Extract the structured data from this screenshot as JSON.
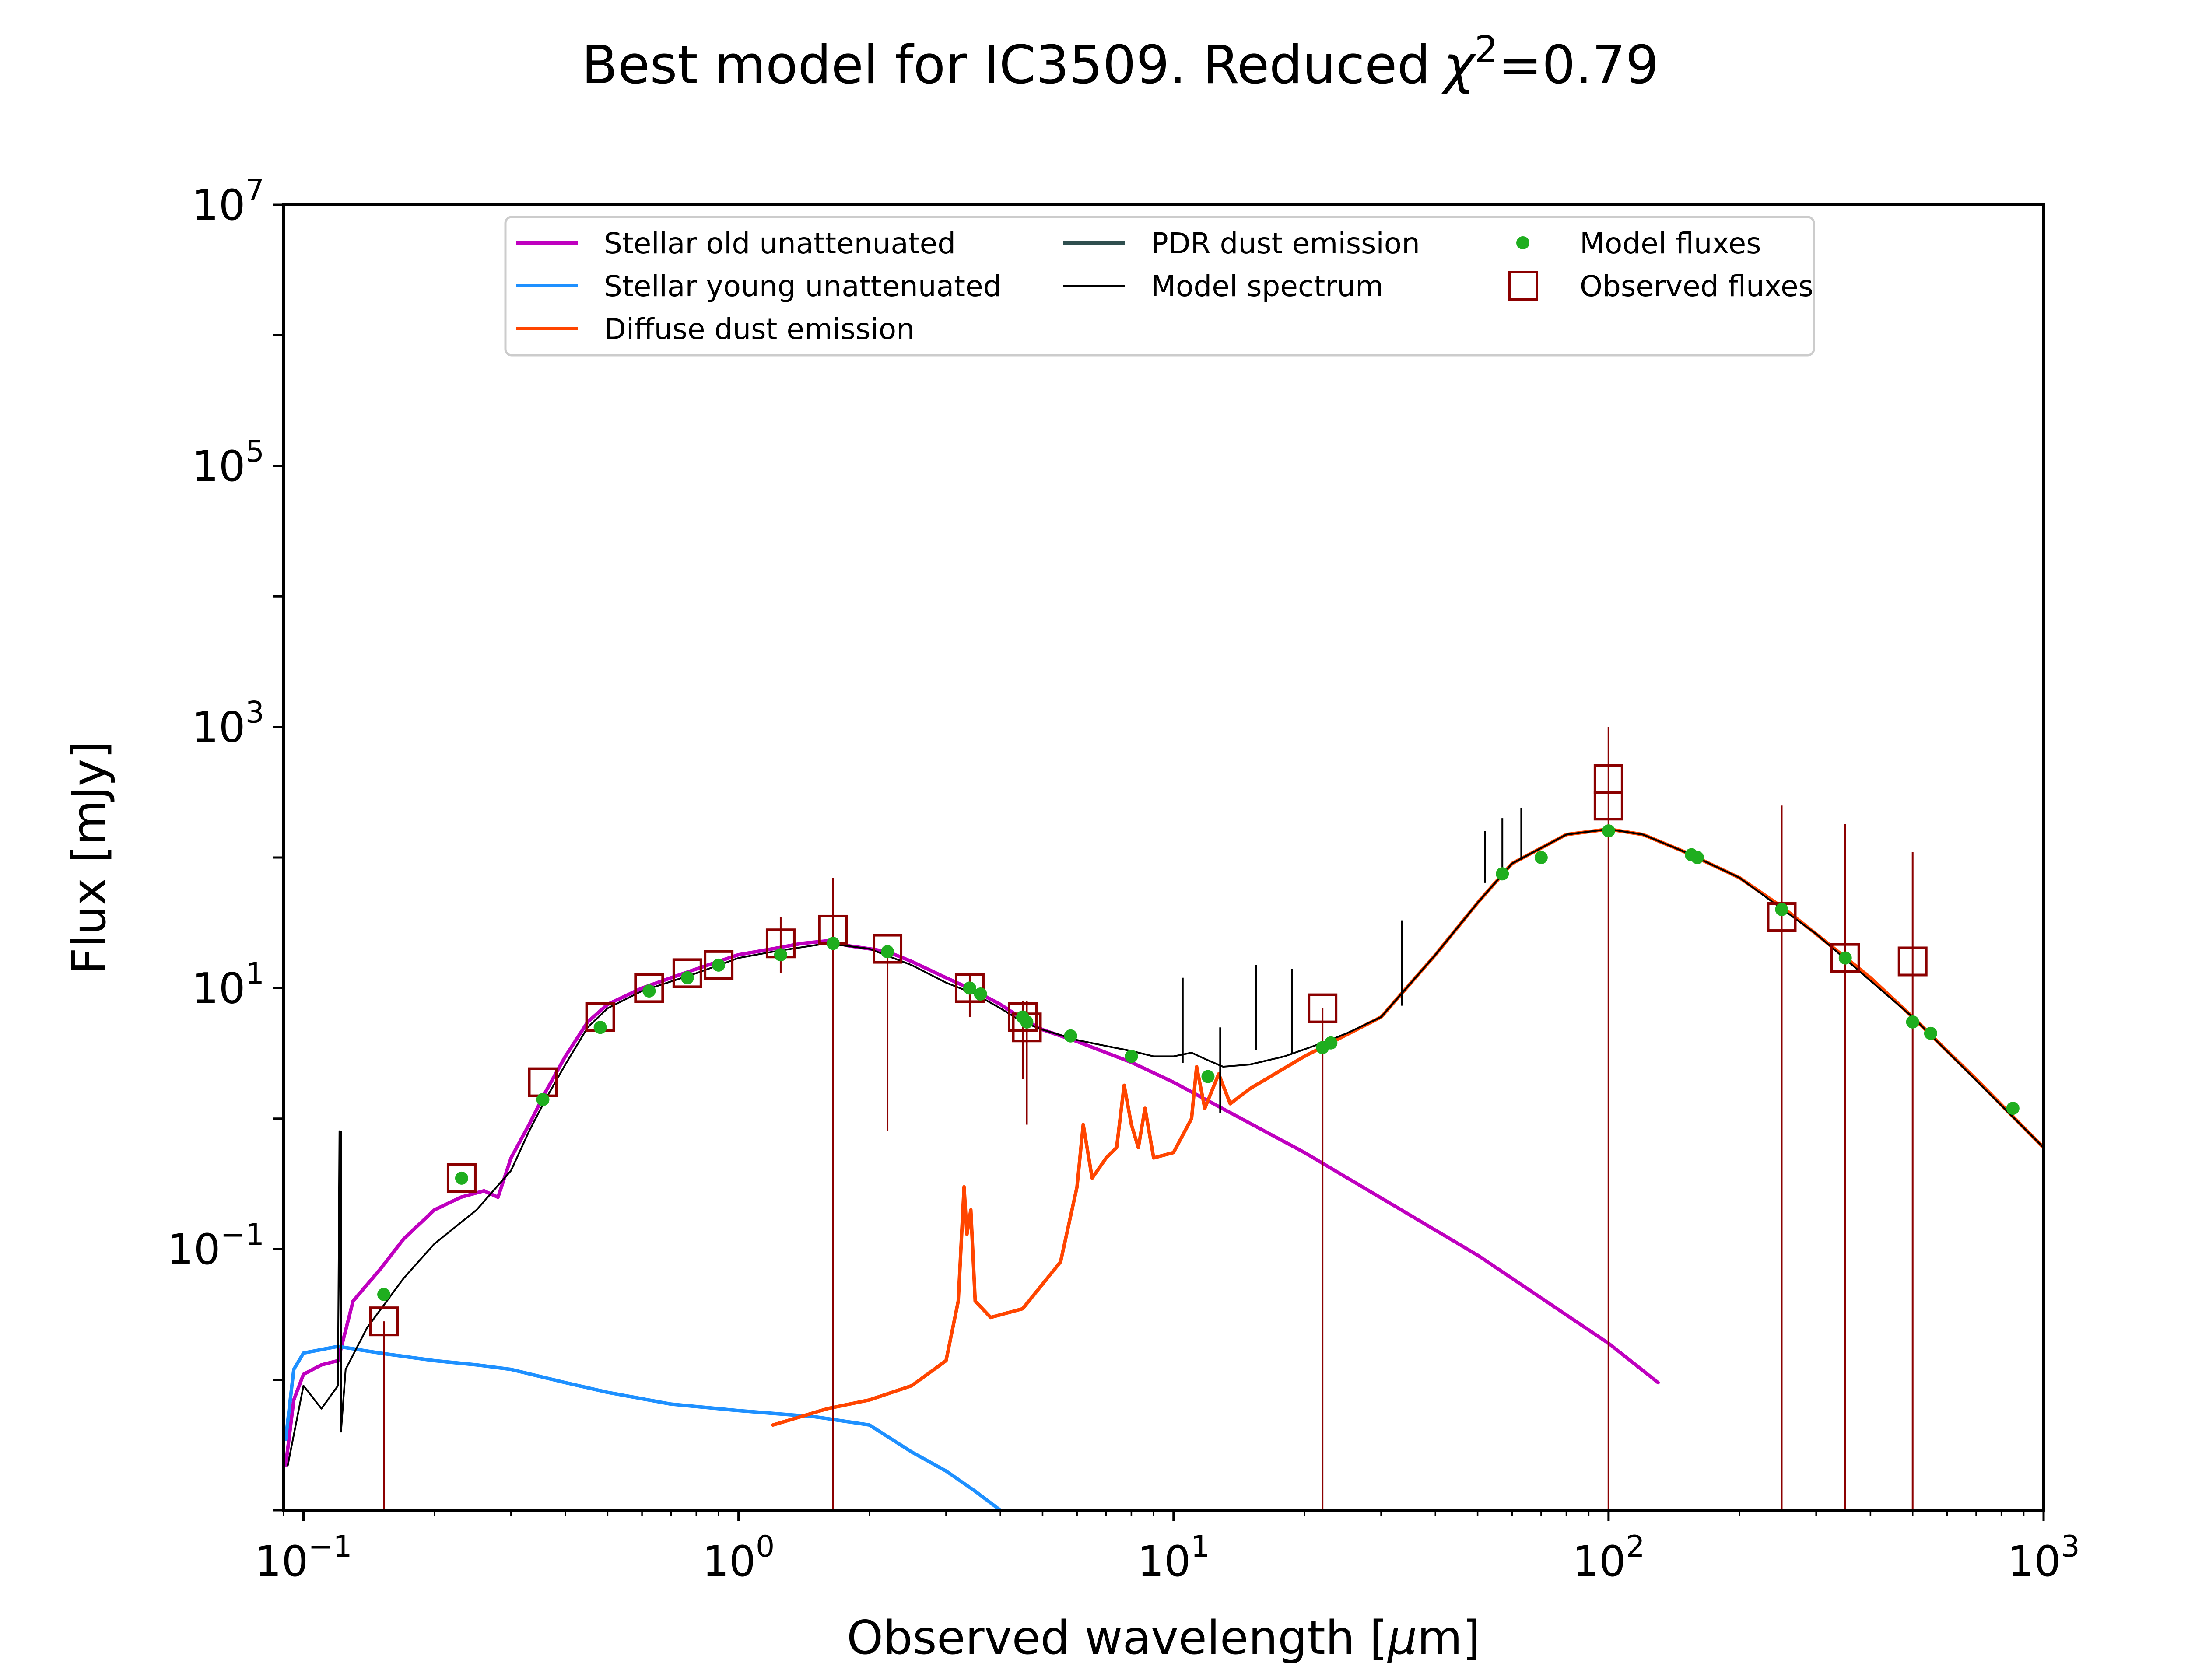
{
  "chart_data": {
    "type": "line",
    "title": "Best model for IC3509. Reduced",
    "title_chi": "χ",
    "title_chi_exp": "2",
    "title_value": "=0.79",
    "xlabel": "Observed wavelength [",
    "xlabel_mu": "μ",
    "xlabel_end": "m]",
    "ylabel": "Flux [mJy]",
    "xscale": "log",
    "yscale": "log",
    "xlim": [
      0.09,
      1000
    ],
    "ylim": [
      0.001,
      10000000
    ],
    "x_ticks": [
      {
        "value": 0.1,
        "base": "10",
        "exp": "−1"
      },
      {
        "value": 1,
        "base": "10",
        "exp": "0"
      },
      {
        "value": 10,
        "base": "10",
        "exp": "1"
      },
      {
        "value": 100,
        "base": "10",
        "exp": "2"
      },
      {
        "value": 1000,
        "base": "10",
        "exp": "3"
      }
    ],
    "y_ticks": [
      {
        "value": 0.1,
        "base": "10",
        "exp": "−1"
      },
      {
        "value": 10,
        "base": "10",
        "exp": "1"
      },
      {
        "value": 1000,
        "base": "10",
        "exp": "3"
      },
      {
        "value": 100000,
        "base": "10",
        "exp": "5"
      },
      {
        "value": 10000000,
        "base": "10",
        "exp": "7"
      }
    ],
    "legend_position": "top-center",
    "legend": [
      {
        "label": "Stellar old unattenuated",
        "color": "#bf00bf",
        "kind": "line"
      },
      {
        "label": "Stellar young unattenuated",
        "color": "#1e90ff",
        "kind": "line"
      },
      {
        "label": "Diffuse dust emission",
        "color": "#ff4500",
        "kind": "line"
      },
      {
        "label": "PDR dust emission",
        "color": "#2f4f4f",
        "kind": "line"
      },
      {
        "label": "Model spectrum",
        "color": "#000000",
        "kind": "thinline"
      },
      {
        "label": "Model fluxes",
        "color": "#1fae1f",
        "kind": "dot"
      },
      {
        "label": "Observed fluxes",
        "color": "#8b0000",
        "kind": "square"
      }
    ],
    "series": [
      {
        "name": "Stellar old unattenuated",
        "color": "#bf00bf",
        "points": [
          [
            0.091,
            0.0022
          ],
          [
            0.095,
            0.007
          ],
          [
            0.1,
            0.011
          ],
          [
            0.11,
            0.013
          ],
          [
            0.12,
            0.014
          ],
          [
            0.13,
            0.04
          ],
          [
            0.15,
            0.07
          ],
          [
            0.17,
            0.12
          ],
          [
            0.2,
            0.2
          ],
          [
            0.23,
            0.25
          ],
          [
            0.26,
            0.28
          ],
          [
            0.28,
            0.25
          ],
          [
            0.3,
            0.5
          ],
          [
            0.33,
            0.9
          ],
          [
            0.36,
            1.6
          ],
          [
            0.4,
            3.0
          ],
          [
            0.45,
            5.5
          ],
          [
            0.5,
            7.5
          ],
          [
            0.6,
            10
          ],
          [
            0.7,
            12
          ],
          [
            0.8,
            14
          ],
          [
            0.9,
            16
          ],
          [
            1.0,
            18
          ],
          [
            1.2,
            20
          ],
          [
            1.4,
            22
          ],
          [
            1.6,
            23
          ],
          [
            1.8,
            21
          ],
          [
            2.0,
            20
          ],
          [
            2.2,
            19
          ],
          [
            2.5,
            16
          ],
          [
            3.0,
            12
          ],
          [
            3.5,
            9.5
          ],
          [
            4.0,
            7.5
          ],
          [
            4.5,
            5.8
          ],
          [
            5.0,
            4.8
          ],
          [
            6.0,
            3.9
          ],
          [
            8.0,
            2.7
          ],
          [
            10,
            1.9
          ],
          [
            20,
            0.55
          ],
          [
            50,
            0.09
          ],
          [
            100,
            0.019
          ],
          [
            130,
            0.0095
          ]
        ]
      },
      {
        "name": "Stellar young unattenuated",
        "color": "#1e90ff",
        "points": [
          [
            0.091,
            0.0035
          ],
          [
            0.095,
            0.012
          ],
          [
            0.1,
            0.016
          ],
          [
            0.12,
            0.018
          ],
          [
            0.15,
            0.016
          ],
          [
            0.2,
            0.014
          ],
          [
            0.25,
            0.013
          ],
          [
            0.3,
            0.012
          ],
          [
            0.4,
            0.0095
          ],
          [
            0.5,
            0.008
          ],
          [
            0.7,
            0.0065
          ],
          [
            1.0,
            0.0058
          ],
          [
            1.5,
            0.0052
          ],
          [
            2.0,
            0.0045
          ],
          [
            2.5,
            0.0028
          ],
          [
            3.0,
            0.002
          ],
          [
            3.5,
            0.0014
          ],
          [
            4.0,
            0.001
          ]
        ]
      },
      {
        "name": "Diffuse dust emission",
        "color": "#ff4500",
        "points": [
          [
            1.2,
            0.0045
          ],
          [
            1.6,
            0.006
          ],
          [
            2.0,
            0.007
          ],
          [
            2.5,
            0.009
          ],
          [
            3.0,
            0.014
          ],
          [
            3.2,
            0.04
          ],
          [
            3.3,
            0.3
          ],
          [
            3.35,
            0.13
          ],
          [
            3.42,
            0.2
          ],
          [
            3.5,
            0.04
          ],
          [
            3.8,
            0.03
          ],
          [
            4.5,
            0.035
          ],
          [
            5.5,
            0.08
          ],
          [
            6.0,
            0.3
          ],
          [
            6.2,
            0.9
          ],
          [
            6.5,
            0.35
          ],
          [
            7.0,
            0.5
          ],
          [
            7.4,
            0.6
          ],
          [
            7.7,
            1.8
          ],
          [
            8.0,
            0.9
          ],
          [
            8.3,
            0.6
          ],
          [
            8.6,
            1.2
          ],
          [
            9.0,
            0.5
          ],
          [
            10,
            0.55
          ],
          [
            11.0,
            1.0
          ],
          [
            11.3,
            2.5
          ],
          [
            11.8,
            1.2
          ],
          [
            12.7,
            2.2
          ],
          [
            13.5,
            1.3
          ],
          [
            15,
            1.7
          ],
          [
            20,
            3.0
          ],
          [
            30,
            6
          ],
          [
            40,
            18
          ],
          [
            50,
            45
          ],
          [
            60,
            90
          ],
          [
            80,
            150
          ],
          [
            100,
            165
          ],
          [
            120,
            150
          ],
          [
            150,
            110
          ],
          [
            200,
            70
          ],
          [
            250,
            42
          ],
          [
            300,
            26
          ],
          [
            400,
            12
          ],
          [
            500,
            6
          ],
          [
            700,
            2
          ],
          [
            1000,
            0.6
          ]
        ]
      },
      {
        "name": "Model spectrum",
        "color": "#000000",
        "points": [
          [
            0.092,
            0.0022
          ],
          [
            0.1,
            0.009
          ],
          [
            0.11,
            0.006
          ],
          [
            0.12,
            0.009
          ],
          [
            0.121,
            0.8
          ],
          [
            0.122,
            0.004
          ],
          [
            0.125,
            0.012
          ],
          [
            0.14,
            0.025
          ],
          [
            0.17,
            0.06
          ],
          [
            0.2,
            0.11
          ],
          [
            0.25,
            0.2
          ],
          [
            0.3,
            0.4
          ],
          [
            0.33,
            0.8
          ],
          [
            0.36,
            1.4
          ],
          [
            0.4,
            2.6
          ],
          [
            0.45,
            5
          ],
          [
            0.5,
            7
          ],
          [
            0.6,
            9.5
          ],
          [
            0.8,
            13
          ],
          [
            1.0,
            17
          ],
          [
            1.2,
            19
          ],
          [
            1.6,
            22
          ],
          [
            2.0,
            20
          ],
          [
            2.5,
            15
          ],
          [
            3.0,
            11
          ],
          [
            3.5,
            9
          ],
          [
            4.0,
            7
          ],
          [
            4.5,
            5.5
          ],
          [
            5.0,
            4.8
          ],
          [
            6.0,
            4.0
          ],
          [
            7.0,
            3.6
          ],
          [
            8.0,
            3.3
          ],
          [
            9.0,
            3.0
          ],
          [
            10,
            3.0
          ],
          [
            11,
            3.2
          ],
          [
            12,
            2.8
          ],
          [
            13,
            2.5
          ],
          [
            15,
            2.6
          ],
          [
            18,
            3.0
          ],
          [
            22,
            3.8
          ],
          [
            25,
            4.5
          ],
          [
            30,
            6
          ],
          [
            40,
            18
          ],
          [
            50,
            45
          ],
          [
            60,
            90
          ],
          [
            80,
            150
          ],
          [
            100,
            165
          ],
          [
            120,
            150
          ],
          [
            150,
            110
          ],
          [
            200,
            70
          ],
          [
            300,
            26
          ],
          [
            500,
            6
          ],
          [
            1000,
            0.6
          ]
        ]
      }
    ],
    "emission_lines": [
      [
        0.122,
        0.8
      ],
      [
        10.5,
        12
      ],
      [
        12.8,
        5
      ],
      [
        15.5,
        15
      ],
      [
        18.7,
        14
      ],
      [
        33.5,
        33
      ],
      [
        52,
        160
      ],
      [
        57,
        200
      ],
      [
        63,
        240
      ]
    ],
    "model_fluxes": [
      [
        0.153,
        0.045
      ],
      [
        0.231,
        0.35
      ],
      [
        0.355,
        1.4
      ],
      [
        0.481,
        5
      ],
      [
        0.623,
        9.5
      ],
      [
        0.763,
        12
      ],
      [
        0.9,
        15
      ],
      [
        1.25,
        18
      ],
      [
        1.65,
        22
      ],
      [
        2.2,
        19
      ],
      [
        3.4,
        10
      ],
      [
        3.6,
        9
      ],
      [
        4.5,
        6
      ],
      [
        4.6,
        5.5
      ],
      [
        5.8,
        4.3
      ],
      [
        8.0,
        3.0
      ],
      [
        12,
        2.1
      ],
      [
        22,
        3.5
      ],
      [
        23,
        3.8
      ],
      [
        57,
        75
      ],
      [
        70,
        100
      ],
      [
        100,
        160
      ],
      [
        155,
        105
      ],
      [
        160,
        100
      ],
      [
        250,
        40
      ],
      [
        350,
        17
      ],
      [
        500,
        5.5
      ],
      [
        550,
        4.5
      ],
      [
        850,
        1.2
      ]
    ],
    "observed_fluxes": [
      {
        "x": 0.153,
        "y": 0.028,
        "lo": 0.001,
        "hi": 0.028
      },
      {
        "x": 0.231,
        "y": 0.35,
        "lo": 0.35,
        "hi": 0.35
      },
      {
        "x": 0.355,
        "y": 1.9,
        "lo": 1.9,
        "hi": 1.9
      },
      {
        "x": 0.481,
        "y": 6,
        "lo": 6,
        "hi": 6
      },
      {
        "x": 0.623,
        "y": 10,
        "lo": 10,
        "hi": 10
      },
      {
        "x": 0.763,
        "y": 13,
        "lo": 13,
        "hi": 13
      },
      {
        "x": 0.9,
        "y": 15,
        "lo": 15,
        "hi": 15
      },
      {
        "x": 1.25,
        "y": 22,
        "lo": 13,
        "hi": 35
      },
      {
        "x": 1.65,
        "y": 28,
        "lo": 0.001,
        "hi": 70
      },
      {
        "x": 2.2,
        "y": 20,
        "lo": 0.8,
        "hi": 20
      },
      {
        "x": 3.4,
        "y": 10,
        "lo": 6,
        "hi": 13
      },
      {
        "x": 4.5,
        "y": 6,
        "lo": 2,
        "hi": 8
      },
      {
        "x": 4.6,
        "y": 5,
        "lo": 0.9,
        "hi": 8
      },
      {
        "x": 22,
        "y": 7,
        "lo": 0.001,
        "hi": 7
      },
      {
        "x": 100,
        "y": 250,
        "lo": 0.001,
        "hi": 1000
      },
      {
        "x": 100,
        "y": 400,
        "lo": 0.001,
        "hi": 1000
      },
      {
        "x": 250,
        "y": 35,
        "lo": 0.001,
        "hi": 250
      },
      {
        "x": 350,
        "y": 17,
        "lo": 0.001,
        "hi": 180
      },
      {
        "x": 500,
        "y": 16,
        "lo": 0.001,
        "hi": 110
      }
    ]
  }
}
